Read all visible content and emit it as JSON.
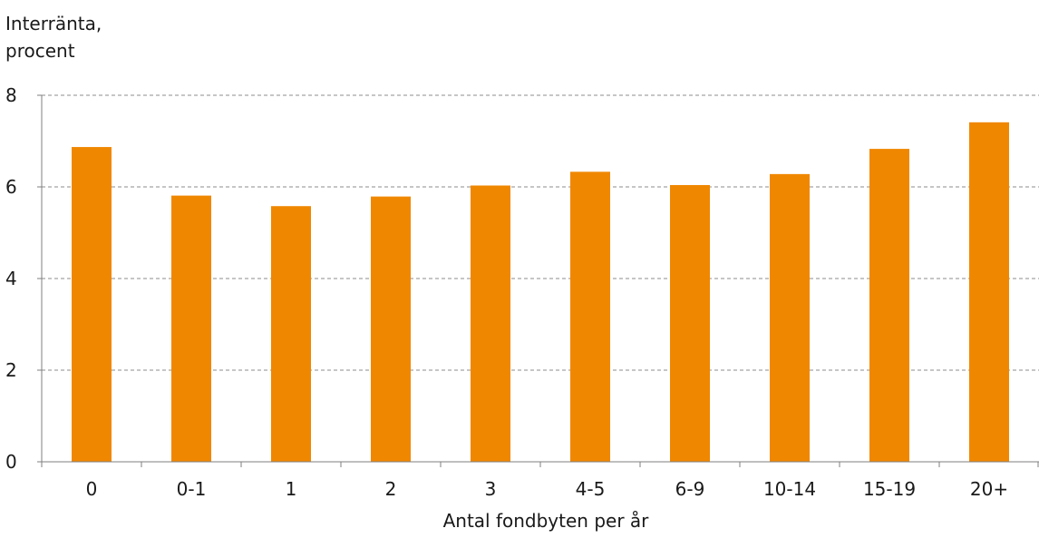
{
  "chart_data": {
    "type": "bar",
    "categories": [
      "0",
      "0-1",
      "1",
      "2",
      "3",
      "4-5",
      "6-9",
      "10-14",
      "15-19",
      "20+"
    ],
    "values": [
      6.87,
      5.81,
      5.58,
      5.79,
      6.03,
      6.33,
      6.04,
      6.28,
      6.83,
      7.41
    ],
    "ylabel_lines": [
      "Interränta,",
      "procent"
    ],
    "xlabel": "Antal fondbyten per år",
    "ylim": [
      0,
      8
    ],
    "yticks": [
      "0",
      "2",
      "4",
      "6",
      "8"
    ],
    "grid": true,
    "bar_color": "#F08700",
    "grid_color": "#8c8c8c",
    "axis_color": "#7f7f7f"
  }
}
